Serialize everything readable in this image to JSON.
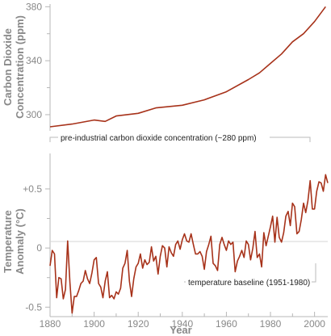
{
  "chart_data": [
    {
      "type": "line",
      "ylabel_lines": [
        "Carbon Dioxide",
        "Concentration (ppm)"
      ],
      "ylim": [
        288,
        382
      ],
      "yticks": [
        300,
        340,
        380
      ],
      "yminor": [
        320,
        360
      ],
      "xlim": [
        1880,
        2006
      ],
      "annotation": "pre-industrial carbon dioxide concentration (~280 ppm)",
      "series": [
        {
          "color": "#a7321a",
          "x": [
            1880,
            1890,
            1900,
            1905,
            1910,
            1920,
            1928,
            1940,
            1950,
            1960,
            1970,
            1975,
            1980,
            1985,
            1990,
            1995,
            2000,
            2005
          ],
          "values": [
            291,
            293,
            296,
            295,
            299,
            301,
            305,
            307,
            311,
            317,
            326,
            331,
            338,
            345,
            354,
            360,
            369,
            380
          ]
        }
      ]
    },
    {
      "type": "line",
      "ylabel_lines": [
        "Temperature",
        "Anomaly (°C)"
      ],
      "ylim": [
        -0.58,
        0.8
      ],
      "yticks": [
        0.5,
        0,
        -0.5
      ],
      "ytick_labels": [
        "+0.5",
        "0",
        "-0.5"
      ],
      "yminor": [
        0.25,
        -0.25
      ],
      "xlim": [
        1880,
        2006
      ],
      "xticks": [
        1880,
        1900,
        1920,
        1940,
        1960,
        1980,
        2000
      ],
      "xminor": [
        1890,
        1910,
        1930,
        1950,
        1970,
        1990
      ],
      "xlabel": "Year",
      "annotation": "temperature baseline (1951-1980)",
      "series": [
        {
          "color": "#a7321a",
          "x": [
            1880,
            1881,
            1882,
            1883,
            1884,
            1885,
            1886,
            1887,
            1888,
            1889,
            1890,
            1891,
            1892,
            1893,
            1894,
            1895,
            1896,
            1897,
            1898,
            1899,
            1900,
            1901,
            1902,
            1903,
            1904,
            1905,
            1906,
            1907,
            1908,
            1909,
            1910,
            1911,
            1912,
            1913,
            1914,
            1915,
            1916,
            1917,
            1918,
            1919,
            1920,
            1921,
            1922,
            1923,
            1924,
            1925,
            1926,
            1927,
            1928,
            1929,
            1930,
            1931,
            1932,
            1933,
            1934,
            1935,
            1936,
            1937,
            1938,
            1939,
            1940,
            1941,
            1942,
            1943,
            1944,
            1945,
            1946,
            1947,
            1948,
            1949,
            1950,
            1951,
            1952,
            1953,
            1954,
            1955,
            1956,
            1957,
            1958,
            1959,
            1960,
            1961,
            1962,
            1963,
            1964,
            1965,
            1966,
            1967,
            1968,
            1969,
            1970,
            1971,
            1972,
            1973,
            1974,
            1975,
            1976,
            1977,
            1978,
            1979,
            1980,
            1981,
            1982,
            1983,
            1984,
            1985,
            1986,
            1987,
            1988,
            1989,
            1990,
            1991,
            1992,
            1993,
            1994,
            1995,
            1996,
            1997,
            1998,
            1999,
            2000,
            2001,
            2002,
            2003,
            2004,
            2005,
            2006
          ],
          "values": [
            -0.15,
            -0.02,
            -0.05,
            -0.42,
            -0.25,
            -0.26,
            -0.43,
            -0.35,
            0.06,
            -0.29,
            -0.55,
            -0.41,
            -0.41,
            -0.36,
            -0.3,
            -0.28,
            -0.19,
            -0.26,
            -0.3,
            -0.21,
            -0.1,
            -0.08,
            -0.3,
            -0.33,
            -0.42,
            -0.28,
            -0.2,
            -0.42,
            -0.4,
            -0.43,
            -0.37,
            -0.39,
            -0.34,
            -0.17,
            -0.13,
            -0.02,
            -0.28,
            -0.41,
            -0.26,
            -0.16,
            -0.13,
            -0.05,
            -0.17,
            -0.1,
            -0.14,
            -0.12,
            0.01,
            -0.11,
            -0.07,
            -0.22,
            -0.07,
            0.02,
            0.0,
            -0.16,
            0.01,
            -0.04,
            -0.07,
            0.03,
            0.06,
            -0.01,
            0.07,
            0.12,
            0.06,
            0.05,
            0.12,
            0.03,
            -0.05,
            -0.05,
            -0.03,
            -0.07,
            -0.18,
            -0.03,
            0.03,
            0.1,
            -0.13,
            -0.15,
            -0.19,
            0.03,
            0.09,
            0.03,
            -0.02,
            0.06,
            0.03,
            0.05,
            -0.2,
            -0.11,
            -0.07,
            -0.02,
            -0.08,
            0.06,
            0.03,
            -0.1,
            0.0,
            0.14,
            -0.08,
            -0.05,
            -0.16,
            0.13,
            0.02,
            0.1,
            0.18,
            0.27,
            0.05,
            0.26,
            0.09,
            0.05,
            0.13,
            0.27,
            0.31,
            0.19,
            0.38,
            0.35,
            0.12,
            0.14,
            0.24,
            0.38,
            0.3,
            0.4,
            0.57,
            0.33,
            0.33,
            0.48,
            0.56,
            0.55,
            0.48,
            0.62,
            0.55
          ]
        }
      ]
    }
  ]
}
